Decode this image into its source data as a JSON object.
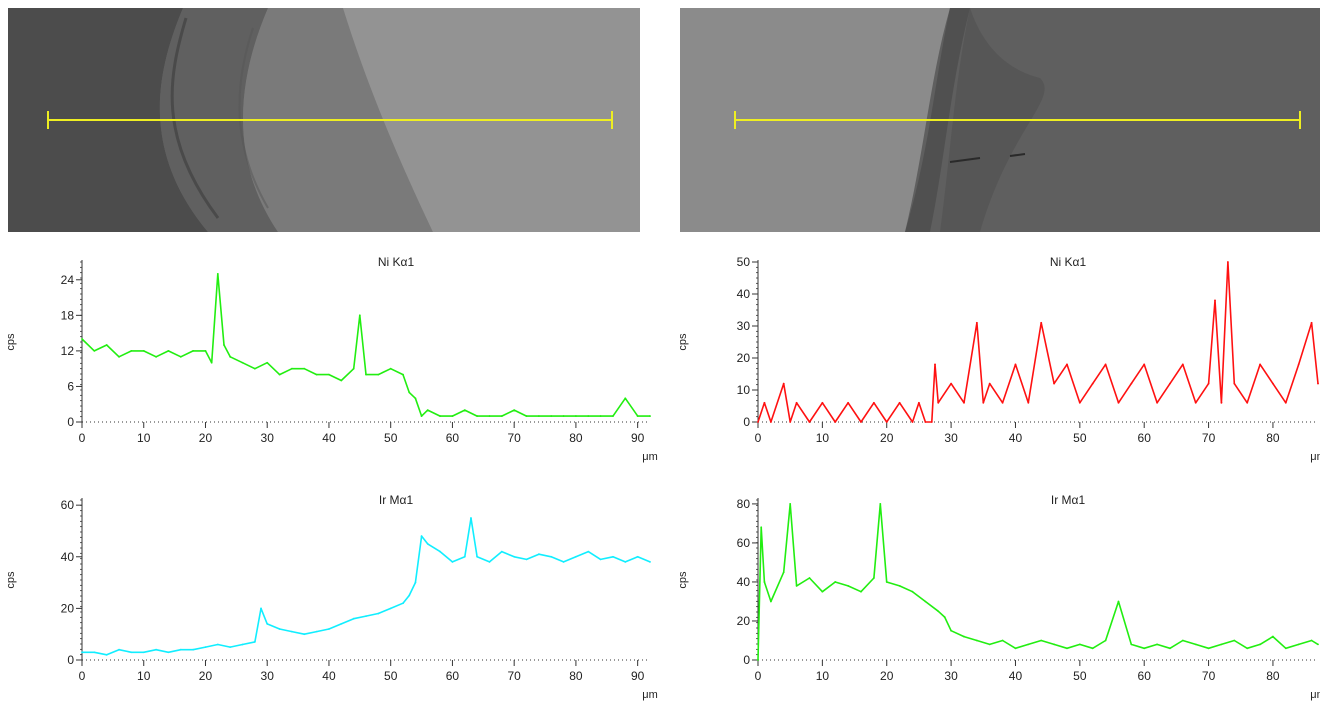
{
  "colors": {
    "nickel_left": "#22ee11",
    "iridium_left": "#11eeff",
    "nickel_right": "#ff1111",
    "iridium_right": "#22ee11",
    "scan_line": "#eeee22"
  },
  "chart_data": [
    {
      "type": "line",
      "panel": "left",
      "title": "Ni Kα1",
      "ylabel": "cps",
      "xlabel": "μm",
      "xlim": [
        0,
        92
      ],
      "ylim": [
        0,
        27
      ],
      "xticks": [
        0,
        10,
        20,
        30,
        40,
        50,
        60,
        70,
        80,
        90
      ],
      "yticks": [
        0,
        6,
        12,
        18,
        24
      ],
      "series": [
        {
          "x": [
            0,
            2,
            4,
            6,
            8,
            10,
            12,
            14,
            16,
            18,
            20,
            21,
            22,
            23,
            24,
            26,
            28,
            30,
            32,
            34,
            36,
            38,
            40,
            42,
            44,
            45,
            46,
            48,
            50,
            52,
            53,
            54,
            55,
            56,
            58,
            60,
            62,
            64,
            66,
            68,
            70,
            72,
            74,
            76,
            78,
            80,
            82,
            84,
            86,
            88,
            90,
            92
          ],
          "y": [
            14,
            12,
            13,
            11,
            12,
            12,
            11,
            12,
            11,
            12,
            12,
            10,
            25,
            13,
            11,
            10,
            9,
            10,
            8,
            9,
            9,
            8,
            8,
            7,
            9,
            18,
            8,
            8,
            9,
            8,
            5,
            4,
            1,
            2,
            1,
            1,
            2,
            1,
            1,
            1,
            2,
            1,
            1,
            1,
            1,
            1,
            1,
            1,
            1,
            4,
            1,
            1
          ]
        }
      ]
    },
    {
      "type": "line",
      "panel": "left",
      "title": "Ir Mα1",
      "ylabel": "cps",
      "xlabel": "μm",
      "xlim": [
        0,
        92
      ],
      "ylim": [
        0,
        62
      ],
      "xticks": [
        0,
        10,
        20,
        30,
        40,
        50,
        60,
        70,
        80,
        90
      ],
      "yticks": [
        0,
        20,
        40,
        60
      ],
      "series": [
        {
          "x": [
            0,
            2,
            4,
            6,
            8,
            10,
            12,
            14,
            16,
            18,
            20,
            22,
            24,
            26,
            28,
            29,
            30,
            32,
            34,
            36,
            38,
            40,
            42,
            44,
            46,
            48,
            50,
            52,
            53,
            54,
            55,
            56,
            58,
            60,
            62,
            63,
            64,
            66,
            68,
            70,
            72,
            74,
            76,
            78,
            80,
            82,
            84,
            86,
            88,
            90,
            92
          ],
          "y": [
            3,
            3,
            2,
            4,
            3,
            3,
            4,
            3,
            4,
            4,
            5,
            6,
            5,
            6,
            7,
            20,
            14,
            12,
            11,
            10,
            11,
            12,
            14,
            16,
            17,
            18,
            20,
            22,
            25,
            30,
            48,
            45,
            42,
            38,
            40,
            55,
            40,
            38,
            42,
            40,
            39,
            41,
            40,
            38,
            40,
            42,
            39,
            40,
            38,
            40,
            38
          ]
        }
      ]
    },
    {
      "type": "line",
      "panel": "right",
      "title": "Ni Kα1",
      "ylabel": "cps",
      "xlabel": "μm",
      "xlim": [
        0,
        87
      ],
      "ylim": [
        0,
        50
      ],
      "xticks": [
        0,
        10,
        20,
        30,
        40,
        50,
        60,
        70,
        80
      ],
      "yticks": [
        0,
        10,
        20,
        30,
        40,
        50
      ],
      "series": [
        {
          "x": [
            0,
            1,
            2,
            4,
            5,
            6,
            8,
            10,
            12,
            14,
            16,
            18,
            20,
            22,
            24,
            25,
            26,
            27,
            27.5,
            28,
            30,
            32,
            34,
            35,
            36,
            38,
            40,
            42,
            44,
            46,
            48,
            50,
            52,
            54,
            56,
            58,
            60,
            62,
            64,
            66,
            68,
            70,
            71,
            72,
            73,
            74,
            76,
            78,
            80,
            82,
            84,
            86,
            87
          ],
          "y": [
            0,
            6,
            0,
            12,
            0,
            6,
            0,
            6,
            0,
            6,
            0,
            6,
            0,
            6,
            0,
            6,
            0,
            0,
            18,
            6,
            12,
            6,
            31,
            6,
            12,
            6,
            18,
            6,
            31,
            12,
            18,
            6,
            12,
            18,
            6,
            12,
            18,
            6,
            12,
            18,
            6,
            12,
            38,
            6,
            50,
            12,
            6,
            18,
            12,
            6,
            18,
            31,
            12
          ]
        }
      ]
    },
    {
      "type": "line",
      "panel": "right",
      "title": "Ir Mα1",
      "ylabel": "cps",
      "xlabel": "μm",
      "xlim": [
        0,
        87
      ],
      "ylim": [
        0,
        82
      ],
      "xticks": [
        0,
        10,
        20,
        30,
        40,
        50,
        60,
        70,
        80
      ],
      "yticks": [
        0,
        20,
        40,
        60,
        80
      ],
      "series": [
        {
          "x": [
            0,
            0.5,
            1,
            2,
            4,
            5,
            6,
            8,
            10,
            12,
            14,
            16,
            18,
            19,
            20,
            22,
            24,
            26,
            28,
            29,
            30,
            32,
            34,
            36,
            38,
            40,
            42,
            44,
            46,
            48,
            50,
            52,
            54,
            56,
            58,
            60,
            62,
            64,
            66,
            68,
            70,
            72,
            74,
            76,
            78,
            80,
            82,
            84,
            86,
            87
          ],
          "y": [
            0,
            68,
            40,
            30,
            45,
            80,
            38,
            42,
            35,
            40,
            38,
            35,
            42,
            80,
            40,
            38,
            35,
            30,
            25,
            22,
            15,
            12,
            10,
            8,
            10,
            6,
            8,
            10,
            8,
            6,
            8,
            6,
            10,
            30,
            8,
            6,
            8,
            6,
            10,
            8,
            6,
            8,
            10,
            6,
            8,
            12,
            6,
            8,
            10,
            8
          ]
        }
      ]
    }
  ]
}
